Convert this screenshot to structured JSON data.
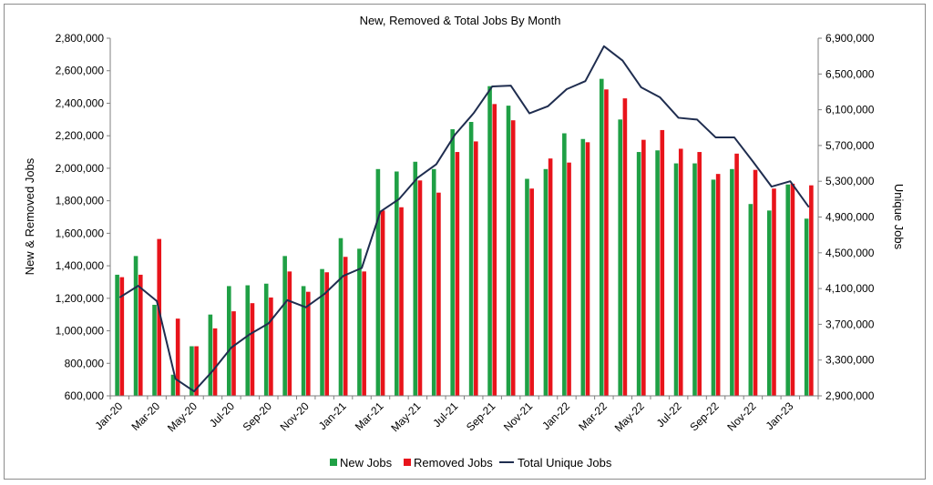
{
  "chart_data": {
    "type": "bar",
    "title": "New, Removed & Total Jobs By Month",
    "ylabel": "New & Removed Jobs",
    "y2label": "Unique Jobs",
    "ylim": [
      600000,
      2800000
    ],
    "y2lim": [
      2900000,
      6900000
    ],
    "yticks": [
      "600,000",
      "800,000",
      "1,000,000",
      "1,200,000",
      "1,400,000",
      "1,600,000",
      "1,800,000",
      "2,000,000",
      "2,200,000",
      "2,400,000",
      "2,600,000",
      "2,800,000"
    ],
    "y2ticks": [
      "2,900,000",
      "3,300,000",
      "3,700,000",
      "4,100,000",
      "4,500,000",
      "4,900,000",
      "5,300,000",
      "5,700,000",
      "6,100,000",
      "6,500,000",
      "6,900,000"
    ],
    "categories": [
      "Jan-20",
      "Feb-20",
      "Mar-20",
      "Apr-20",
      "May-20",
      "Jun-20",
      "Jul-20",
      "Aug-20",
      "Sep-20",
      "Oct-20",
      "Nov-20",
      "Dec-20",
      "Jan-21",
      "Feb-21",
      "Mar-21",
      "Apr-21",
      "May-21",
      "Jun-21",
      "Jul-21",
      "Aug-21",
      "Sep-21",
      "Oct-21",
      "Nov-21",
      "Dec-21",
      "Jan-22",
      "Feb-22",
      "Mar-22",
      "Apr-22",
      "May-22",
      "Jun-22",
      "Jul-22",
      "Aug-22",
      "Sep-22",
      "Oct-22",
      "Nov-22",
      "Dec-22",
      "Jan-23",
      "Feb-23"
    ],
    "tick_labels": [
      "Jan-20",
      "Mar-20",
      "May-20",
      "Jul-20",
      "Sep-20",
      "Nov-20",
      "Jan-21",
      "Mar-21",
      "May-21",
      "Jul-21",
      "Sep-21",
      "Nov-21",
      "Jan-22",
      "Mar-22",
      "May-22",
      "Jul-22",
      "Sep-22",
      "Nov-22",
      "Jan-23"
    ],
    "legend_position": "bottom",
    "grid": false,
    "series": [
      {
        "name": "New Jobs",
        "type": "bar",
        "axis": "left",
        "color": "#1fa045",
        "values": [
          1345000,
          1460000,
          1160000,
          730000,
          905000,
          1100000,
          1275000,
          1280000,
          1290000,
          1460000,
          1275000,
          1380000,
          1570000,
          1505000,
          1995000,
          1980000,
          2040000,
          1995000,
          2240000,
          2285000,
          2505000,
          2385000,
          1935000,
          1995000,
          2215000,
          2180000,
          2550000,
          2300000,
          2100000,
          2110000,
          2030000,
          2030000,
          1930000,
          1995000,
          1780000,
          1740000,
          1900000,
          1690000
        ]
      },
      {
        "name": "Removed Jobs",
        "type": "bar",
        "axis": "left",
        "color": "#e8141b",
        "values": [
          1330000,
          1345000,
          1565000,
          1075000,
          905000,
          1015000,
          1120000,
          1170000,
          1205000,
          1365000,
          1240000,
          1360000,
          1455000,
          1365000,
          1740000,
          1760000,
          1925000,
          1850000,
          2100000,
          2165000,
          2395000,
          2295000,
          1875000,
          2060000,
          2035000,
          2160000,
          2485000,
          2430000,
          2175000,
          2235000,
          2120000,
          2100000,
          1965000,
          2090000,
          1990000,
          1875000,
          1905000,
          1895000
        ]
      },
      {
        "name": "Total Unique Jobs",
        "type": "line",
        "axis": "right",
        "color": "#1f2d4f",
        "values": [
          4000000,
          4130000,
          3960000,
          3090000,
          2950000,
          3180000,
          3440000,
          3590000,
          3710000,
          3970000,
          3890000,
          4040000,
          4240000,
          4330000,
          4960000,
          5100000,
          5340000,
          5490000,
          5820000,
          6060000,
          6360000,
          6370000,
          6060000,
          6140000,
          6330000,
          6420000,
          6810000,
          6650000,
          6350000,
          6240000,
          6010000,
          5990000,
          5790000,
          5790000,
          5520000,
          5240000,
          5300000,
          5010000
        ]
      }
    ]
  }
}
